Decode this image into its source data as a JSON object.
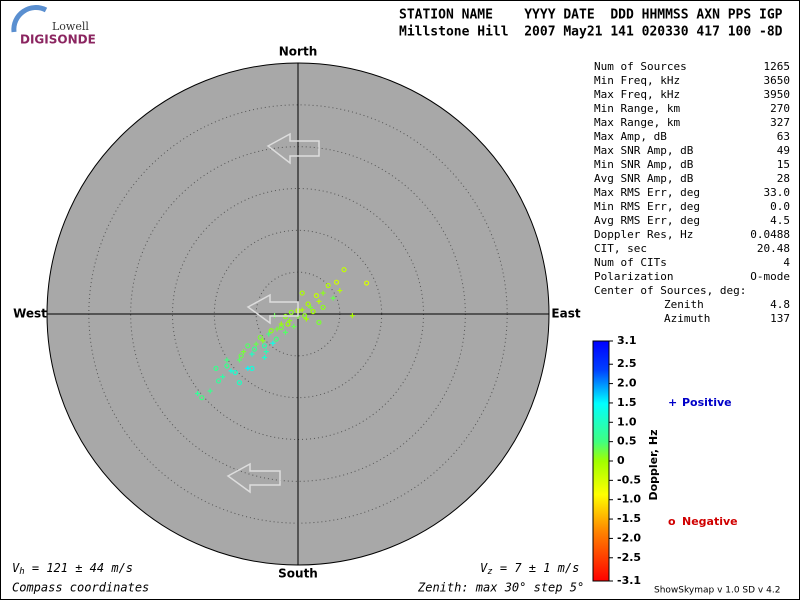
{
  "logo": {
    "small": "Lowell",
    "big": "DIGISONDE"
  },
  "header": {
    "labels": "STATION NAME    YYYY DATE  DDD HHMMSS AXN PPS IGP",
    "values": "Millstone Hill  2007 May21 141 020330 417 100 -8D"
  },
  "stats": [
    [
      "Num of Sources",
      "1265"
    ],
    [
      "Min Freq, kHz",
      "3650"
    ],
    [
      "Max Freq, kHz",
      "3950"
    ],
    [
      "Min Range, km",
      "270"
    ],
    [
      "Max Range, km",
      "327"
    ],
    [
      "Max Amp, dB",
      "63"
    ],
    [
      "Max SNR Amp, dB",
      "49"
    ],
    [
      "Min SNR Amp, dB",
      "15"
    ],
    [
      "Avg SNR Amp, dB",
      "28"
    ],
    [
      "Max RMS Err, deg",
      "33.0"
    ],
    [
      "Min RMS Err, deg",
      "0.0"
    ],
    [
      "Avg RMS Err, deg",
      "4.5"
    ],
    [
      "Doppler Res, Hz",
      "0.0488"
    ],
    [
      "CIT, sec",
      "20.48"
    ],
    [
      "Num of CITs",
      "4"
    ],
    [
      "Polarization",
      "O-mode"
    ]
  ],
  "center": {
    "title": "Center of Sources, deg:",
    "rows": [
      [
        "Zenith",
        "4.8"
      ],
      [
        "Azimuth",
        "137"
      ]
    ]
  },
  "footer": {
    "vh": {
      "symbol": "V",
      "sub": "h",
      "text": " = 121 ± 44 m/s"
    },
    "vz": {
      "symbol": "V",
      "sub": "z",
      "text": " = 7 ± 1 m/s"
    },
    "coords": "Compass coordinates",
    "zenith": "Zenith: max 30°  step 5°",
    "version": "ShowSkymap v 1.0  SD v 4.2"
  },
  "chart_data": {
    "type": "scatter",
    "directions": {
      "north": "North",
      "south": "South",
      "west": "West",
      "east": "East"
    },
    "xlim": [
      -30,
      30
    ],
    "ylim": [
      -30,
      30
    ],
    "rings": [
      5,
      10,
      15,
      20,
      25,
      30
    ],
    "colorbar": {
      "label": "Doppler, Hz",
      "lim": [
        -3.1,
        3.1
      ],
      "ticks": [
        3.1,
        2.5,
        {
          "value": 2,
          "label": "2.0"
        },
        1.5,
        {
          "value": 1,
          "label": "1.0"
        },
        0.5,
        0,
        -0.5,
        {
          "value": -1,
          "label": "-1.0"
        },
        -1.5,
        {
          "value": -2,
          "label": "-2.0"
        },
        -2.5,
        -3.1
      ]
    },
    "series": [
      {
        "name": "Positive",
        "symbol": "+",
        "color": "#0000c8",
        "x": [
          -10.5,
          -9,
          -8,
          -7,
          -6.5,
          -5.5,
          -5,
          -4.2,
          -3.5,
          -3,
          -2.5,
          -2,
          -1.5,
          -1,
          -0.5,
          0,
          0.5,
          1,
          1.5,
          2.5,
          3,
          4.2,
          5,
          -12,
          -6,
          -4,
          -8.5,
          -2.8,
          6.5,
          -3.8
        ],
        "y": [
          -9.2,
          -7.5,
          -6.8,
          -5.5,
          -4.5,
          -4.8,
          -3.6,
          -3.2,
          -2.4,
          -3.5,
          -1.8,
          -1.2,
          -2.2,
          -0.8,
          -1.5,
          -0.3,
          0.5,
          -0.6,
          0.8,
          1.5,
          2.5,
          1.9,
          2.8,
          -9.5,
          -6.5,
          -5.2,
          -5.5,
          -0.2,
          -0.2,
          -4.5
        ],
        "values": [
          0.6,
          0.8,
          1.2,
          0.4,
          0.2,
          1,
          0.3,
          0.1,
          0.5,
          1.3,
          0.2,
          0,
          0.4,
          0.1,
          0.3,
          0.2,
          -0.1,
          0,
          0.2,
          -0.2,
          0.1,
          0.3,
          -0.2,
          0.7,
          1.5,
          1.1,
          0.5,
          0.3,
          -0.1,
          0.9
        ]
      },
      {
        "name": "Negative",
        "symbol": "o",
        "color": "#d00000",
        "x": [
          -11.5,
          -9.5,
          -8.5,
          -7.5,
          -6.8,
          -6,
          -5.2,
          -4.5,
          -4,
          -3.2,
          -2.6,
          -2,
          -1.2,
          -0.8,
          0,
          0.8,
          1.2,
          1.8,
          2.2,
          3,
          3.6,
          4.6,
          5.5,
          8.2,
          2.5,
          -7,
          -5.5,
          -1.5,
          0.5,
          -9.8
        ],
        "y": [
          -10,
          -8,
          -6.2,
          -7,
          -5,
          -3.8,
          -4.2,
          -2.8,
          -3.8,
          -2,
          -3,
          -1.6,
          -1.2,
          0.2,
          0.4,
          -0.2,
          1.2,
          0.3,
          2.2,
          0.8,
          3.4,
          3.8,
          5.3,
          3.7,
          -1,
          -8.2,
          -6.5,
          -0.3,
          2.5,
          -6.5
        ],
        "values": [
          0.5,
          0.7,
          0.6,
          1.1,
          0.3,
          0.4,
          0.6,
          0.2,
          0.8,
          0.1,
          0.5,
          0.2,
          0,
          0.1,
          -0.2,
          0.1,
          -0.1,
          0,
          -0.3,
          0.1,
          -0.2,
          -0.4,
          -0.3,
          -0.5,
          0.2,
          1,
          1.2,
          0.1,
          -0.1,
          0.6
        ]
      }
    ]
  }
}
